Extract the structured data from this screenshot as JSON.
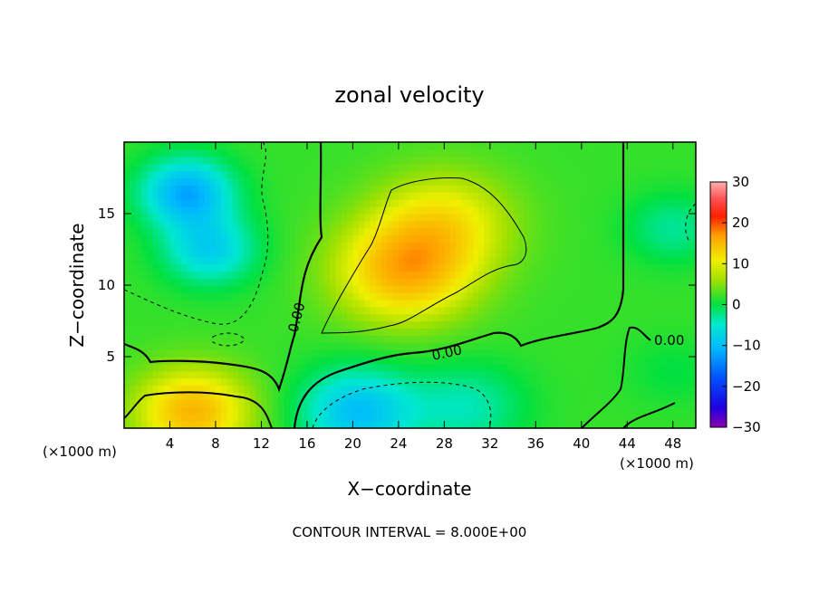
{
  "chart_data": {
    "type": "heatmap",
    "title": "zonal velocity",
    "xlabel": "X−coordinate",
    "ylabel": "Z−coordinate",
    "x_unit_left": "(×1000 m)",
    "x_unit_right": "(×1000 m)",
    "footer": "CONTOUR INTERVAL = 8.000E+00",
    "contour_label": "0.00",
    "xlim": [
      0,
      50
    ],
    "ylim": [
      0,
      20
    ],
    "x_ticks": [
      4,
      8,
      12,
      16,
      20,
      24,
      28,
      32,
      36,
      40,
      44,
      48
    ],
    "y_ticks": [
      5,
      10,
      15
    ],
    "colorbar": {
      "min": -30,
      "max": 30,
      "ticks": [
        30,
        20,
        10,
        0,
        -10,
        -20,
        -30
      ],
      "tick_labels": [
        "30",
        "20",
        "10",
        "0",
        "−10",
        "−20",
        "−30"
      ]
    },
    "field_features": [
      {
        "x": 5.5,
        "z": 16.5,
        "value": -14,
        "r": 4
      },
      {
        "x": 7.5,
        "z": 12.5,
        "value": -10,
        "r": 4
      },
      {
        "x": 24.5,
        "z": 11,
        "value": 13,
        "r": 6
      },
      {
        "x": 28,
        "z": 14.5,
        "value": 8,
        "r": 6
      },
      {
        "x": 6,
        "z": 1.2,
        "value": 13,
        "r": 5
      },
      {
        "x": 20.5,
        "z": 1.2,
        "value": -12,
        "r": 5
      },
      {
        "x": 30,
        "z": 1.5,
        "value": -6,
        "r": 5
      },
      {
        "x": 48,
        "z": 14,
        "value": -5,
        "r": 4
      },
      {
        "x": 48,
        "z": 4,
        "value": -2,
        "r": 4
      }
    ]
  }
}
